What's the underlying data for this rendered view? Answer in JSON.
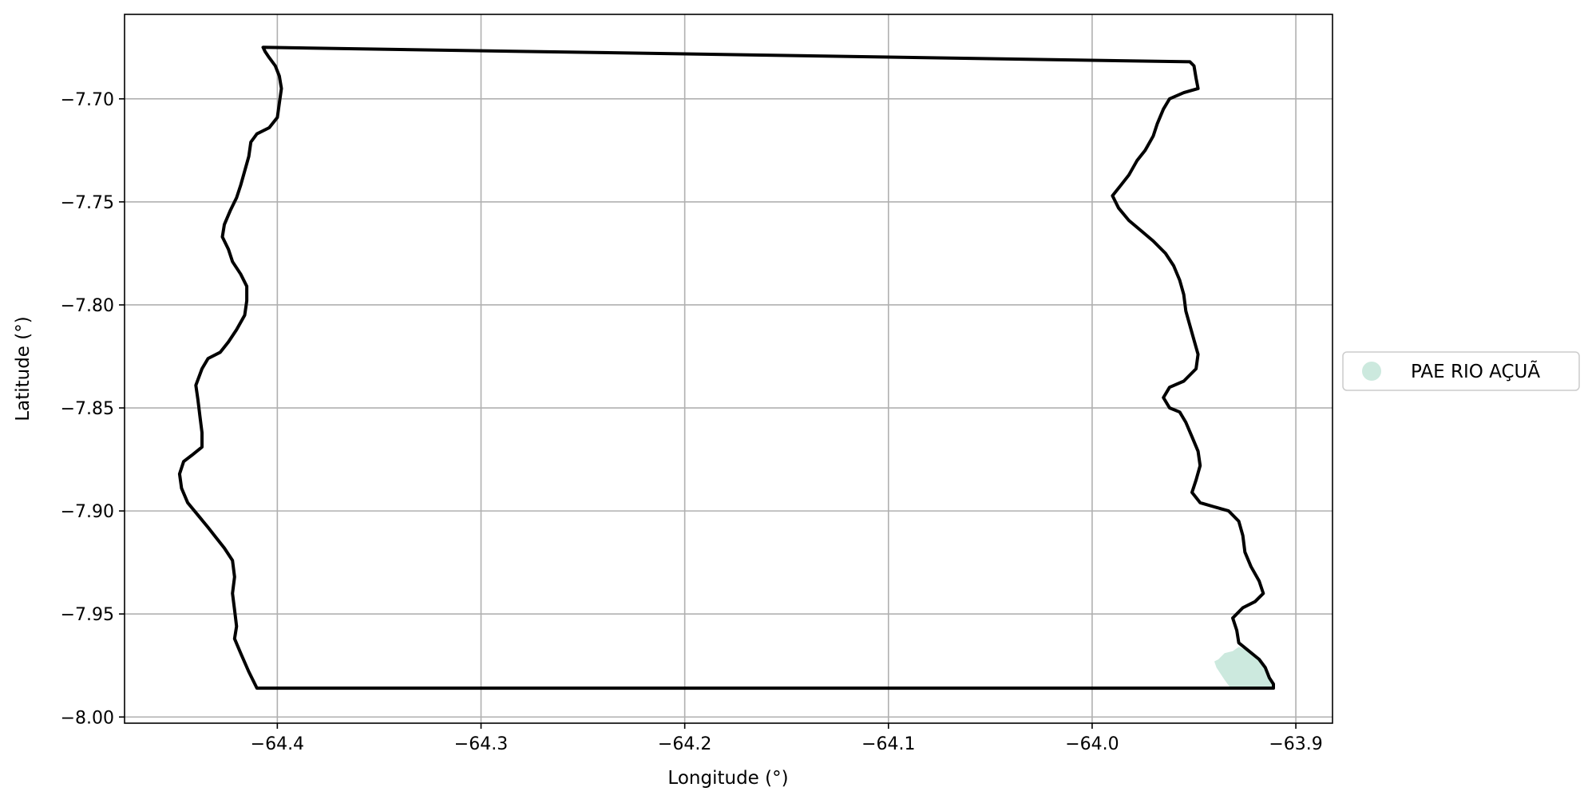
{
  "chart_data": {
    "type": "map",
    "xlabel": "Longitude (°)",
    "ylabel": "Latitude (°)",
    "xlim": [
      -64.475,
      -63.882
    ],
    "ylim": [
      -8.003,
      -7.659
    ],
    "grid": true,
    "x_ticks": [
      -64.4,
      -64.3,
      -64.2,
      -64.1,
      -64.0,
      -63.9
    ],
    "x_tick_labels": [
      "−64.4",
      "−64.3",
      "−64.2",
      "−64.1",
      "−64.0",
      "−63.9"
    ],
    "y_ticks": [
      -7.7,
      -7.75,
      -7.8,
      -7.85,
      -7.9,
      -7.95,
      -8.0
    ],
    "y_tick_labels": [
      "−7.70",
      "−7.75",
      "−7.80",
      "−7.85",
      "−7.90",
      "−7.95",
      "−8.00"
    ],
    "legend": {
      "placement": "right",
      "entries": [
        {
          "label": "PAE RIO AÇUÃ",
          "color": "#cce9de"
        }
      ]
    },
    "boundary": {
      "stroke": "#000000",
      "points": [
        [
          -64.407,
          -7.675
        ],
        [
          -63.952,
          -7.682
        ],
        [
          -63.95,
          -7.684
        ],
        [
          -63.949,
          -7.69
        ],
        [
          -63.948,
          -7.695
        ],
        [
          -63.955,
          -7.697
        ],
        [
          -63.962,
          -7.7
        ],
        [
          -63.965,
          -7.705
        ],
        [
          -63.968,
          -7.712
        ],
        [
          -63.97,
          -7.718
        ],
        [
          -63.974,
          -7.725
        ],
        [
          -63.978,
          -7.73
        ],
        [
          -63.982,
          -7.737
        ],
        [
          -63.986,
          -7.742
        ],
        [
          -63.99,
          -7.747
        ],
        [
          -63.987,
          -7.753
        ],
        [
          -63.982,
          -7.759
        ],
        [
          -63.976,
          -7.764
        ],
        [
          -63.97,
          -7.769
        ],
        [
          -63.964,
          -7.775
        ],
        [
          -63.96,
          -7.781
        ],
        [
          -63.957,
          -7.788
        ],
        [
          -63.955,
          -7.795
        ],
        [
          -63.954,
          -7.803
        ],
        [
          -63.952,
          -7.81
        ],
        [
          -63.95,
          -7.817
        ],
        [
          -63.948,
          -7.824
        ],
        [
          -63.949,
          -7.831
        ],
        [
          -63.955,
          -7.837
        ],
        [
          -63.962,
          -7.84
        ],
        [
          -63.965,
          -7.845
        ],
        [
          -63.962,
          -7.85
        ],
        [
          -63.957,
          -7.852
        ],
        [
          -63.954,
          -7.857
        ],
        [
          -63.951,
          -7.864
        ],
        [
          -63.948,
          -7.871
        ],
        [
          -63.947,
          -7.878
        ],
        [
          -63.949,
          -7.885
        ],
        [
          -63.951,
          -7.891
        ],
        [
          -63.947,
          -7.896
        ],
        [
          -63.94,
          -7.898
        ],
        [
          -63.933,
          -7.9
        ],
        [
          -63.928,
          -7.905
        ],
        [
          -63.926,
          -7.912
        ],
        [
          -63.925,
          -7.92
        ],
        [
          -63.922,
          -7.927
        ],
        [
          -63.918,
          -7.934
        ],
        [
          -63.916,
          -7.94
        ],
        [
          -63.92,
          -7.944
        ],
        [
          -63.926,
          -7.947
        ],
        [
          -63.931,
          -7.952
        ],
        [
          -63.929,
          -7.958
        ],
        [
          -63.928,
          -7.964
        ],
        [
          -63.923,
          -7.968
        ],
        [
          -63.918,
          -7.972
        ],
        [
          -63.915,
          -7.976
        ],
        [
          -63.913,
          -7.981
        ],
        [
          -63.911,
          -7.984
        ],
        [
          -63.911,
          -7.986
        ],
        [
          -64.41,
          -7.986
        ],
        [
          -64.414,
          -7.978
        ],
        [
          -64.418,
          -7.969
        ],
        [
          -64.421,
          -7.962
        ],
        [
          -64.42,
          -7.956
        ],
        [
          -64.421,
          -7.948
        ],
        [
          -64.422,
          -7.94
        ],
        [
          -64.421,
          -7.932
        ],
        [
          -64.422,
          -7.924
        ],
        [
          -64.426,
          -7.918
        ],
        [
          -64.43,
          -7.913
        ],
        [
          -64.434,
          -7.908
        ],
        [
          -64.439,
          -7.902
        ],
        [
          -64.444,
          -7.896
        ],
        [
          -64.447,
          -7.889
        ],
        [
          -64.448,
          -7.882
        ],
        [
          -64.446,
          -7.876
        ],
        [
          -64.442,
          -7.873
        ],
        [
          -64.437,
          -7.869
        ],
        [
          -64.437,
          -7.862
        ],
        [
          -64.438,
          -7.854
        ],
        [
          -64.439,
          -7.846
        ],
        [
          -64.44,
          -7.839
        ],
        [
          -64.437,
          -7.831
        ],
        [
          -64.434,
          -7.826
        ],
        [
          -64.428,
          -7.823
        ],
        [
          -64.424,
          -7.818
        ],
        [
          -64.42,
          -7.812
        ],
        [
          -64.416,
          -7.805
        ],
        [
          -64.415,
          -7.798
        ],
        [
          -64.415,
          -7.791
        ],
        [
          -64.418,
          -7.785
        ],
        [
          -64.422,
          -7.779
        ],
        [
          -64.424,
          -7.773
        ],
        [
          -64.427,
          -7.767
        ],
        [
          -64.426,
          -7.761
        ],
        [
          -64.423,
          -7.754
        ],
        [
          -64.42,
          -7.748
        ],
        [
          -64.418,
          -7.742
        ],
        [
          -64.416,
          -7.735
        ],
        [
          -64.414,
          -7.728
        ],
        [
          -64.413,
          -7.721
        ],
        [
          -64.41,
          -7.717
        ],
        [
          -64.404,
          -7.714
        ],
        [
          -64.4,
          -7.709
        ],
        [
          -64.399,
          -7.702
        ],
        [
          -64.398,
          -7.695
        ],
        [
          -64.399,
          -7.689
        ],
        [
          -64.401,
          -7.684
        ],
        [
          -64.404,
          -7.68
        ],
        [
          -64.406,
          -7.677
        ],
        [
          -64.407,
          -7.675
        ]
      ]
    },
    "highlighted_area": {
      "label": "PAE RIO AÇUÃ",
      "fill": "#cce9de",
      "points": [
        [
          -63.938,
          -7.972
        ],
        [
          -63.935,
          -7.969
        ],
        [
          -63.931,
          -7.968
        ],
        [
          -63.928,
          -7.966
        ],
        [
          -63.923,
          -7.968
        ],
        [
          -63.918,
          -7.972
        ],
        [
          -63.915,
          -7.976
        ],
        [
          -63.913,
          -7.981
        ],
        [
          -63.911,
          -7.984
        ],
        [
          -63.911,
          -7.986
        ],
        [
          -63.932,
          -7.986
        ],
        [
          -63.935,
          -7.982
        ],
        [
          -63.939,
          -7.976
        ],
        [
          -63.94,
          -7.973
        ]
      ]
    }
  }
}
